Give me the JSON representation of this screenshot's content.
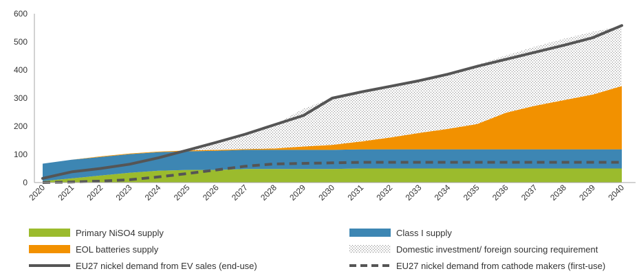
{
  "chart_data": {
    "type": "area",
    "categories": [
      "2020",
      "2021",
      "2022",
      "2023",
      "2024",
      "2025",
      "2026",
      "2027",
      "2028",
      "2029",
      "2030",
      "2031",
      "2032",
      "2033",
      "2034",
      "2035",
      "2036",
      "2037",
      "2038",
      "2039",
      "2040"
    ],
    "ylim": [
      0,
      600
    ],
    "yticks": [
      0,
      100,
      200,
      300,
      400,
      500,
      600
    ],
    "grid": false,
    "legend_position": "bottom",
    "stacked_areas": [
      {
        "name": "Primary NiSO4 supply",
        "color": "#9bbb2d",
        "values": [
          5,
          15,
          25,
          35,
          42,
          45,
          45,
          48,
          48,
          48,
          48,
          50,
          50,
          50,
          50,
          50,
          50,
          50,
          50,
          50,
          50
        ]
      },
      {
        "name": "Class I supply",
        "color": "#3d86b3",
        "values": [
          62,
          66,
          66,
          66,
          66,
          66,
          68,
          68,
          68,
          68,
          68,
          68,
          68,
          68,
          68,
          68,
          68,
          68,
          68,
          68,
          68
        ]
      },
      {
        "name": "EOL batteries supply",
        "color": "#f29100",
        "values": [
          0,
          0,
          2,
          2,
          2,
          3,
          3,
          3,
          5,
          12,
          18,
          28,
          42,
          58,
          73,
          90,
          130,
          155,
          175,
          195,
          225
        ]
      },
      {
        "name": "Domestic investment/ foreign sourcing requirement",
        "color": "#f2f2f2",
        "values": [
          0,
          0,
          0,
          0,
          0,
          0,
          20,
          48,
          84,
          134,
          167,
          169,
          179,
          184,
          194,
          210,
          204,
          210,
          218,
          223,
          214
        ]
      }
    ],
    "lines": [
      {
        "name": "EU27 nickel demand from EV sales (end-use)",
        "color": "#555555",
        "dash": false,
        "values": [
          15,
          38,
          50,
          65,
          88,
          115,
          143,
          172,
          205,
          238,
          300,
          322,
          342,
          362,
          385,
          413,
          438,
          463,
          488,
          515,
          558
        ]
      },
      {
        "name": "EU27 nickel demand from cathode makers (first-use)",
        "color": "#555555",
        "dash": true,
        "values": [
          0,
          2,
          5,
          10,
          20,
          32,
          45,
          58,
          66,
          68,
          70,
          72,
          72,
          72,
          72,
          72,
          72,
          72,
          72,
          72,
          72
        ]
      }
    ]
  }
}
